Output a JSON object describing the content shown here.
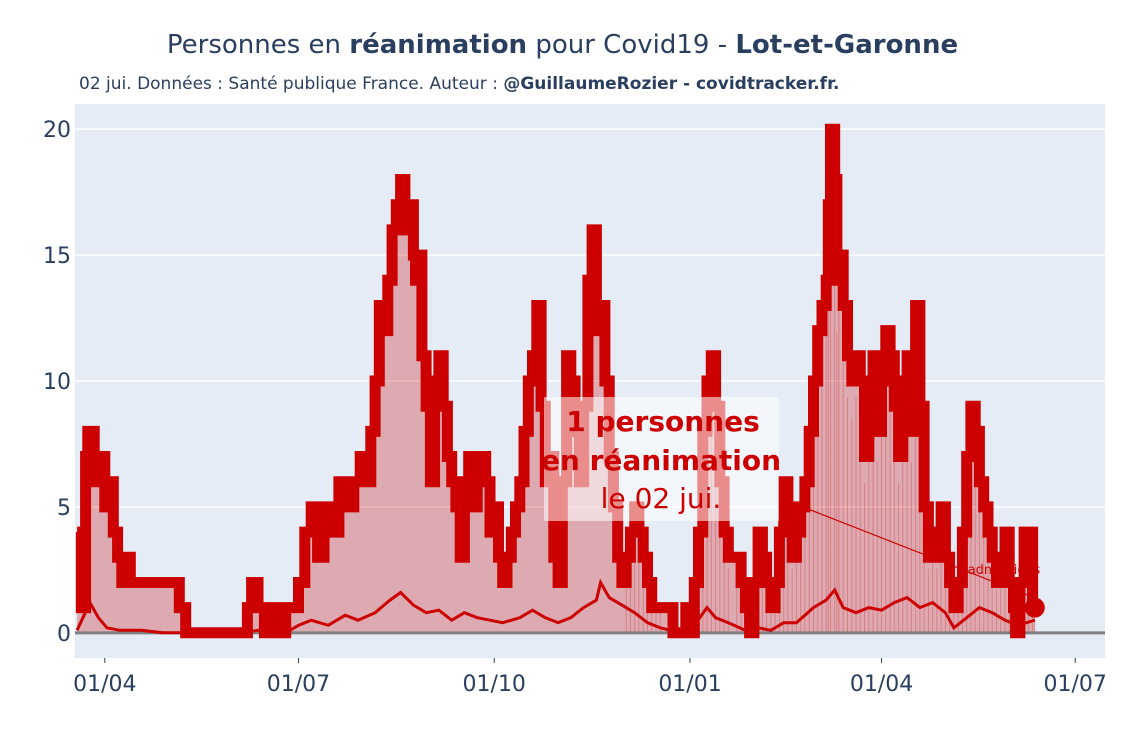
{
  "title": {
    "prefix": "Personnes en ",
    "bold1": "réanimation",
    "middle": " pour Covid19 - ",
    "bold2": "Lot-et-Garonne"
  },
  "subtitle": {
    "text": "02 jui. Données : Santé publique France. Auteur : ",
    "bold": "@GuillaumeRozier - covidtracker.fr."
  },
  "colors": {
    "main": "#cc0000",
    "fill": "rgba(204,0,0,0.28)",
    "plot_bg": "#e5ecf6",
    "grid": "#ffffff",
    "zero_line": "#808080"
  },
  "annotation": {
    "line1": "1 personnes",
    "line2": "en réanimation",
    "line3": "le 02 jui."
  },
  "small_annotation": {
    "line1": "0",
    "line2": "admissions"
  },
  "chart_data": {
    "type": "area",
    "x_start": "2020-03-19",
    "x_end": "2021-06-02",
    "xlim": [
      "2020-03-18",
      "2021-07-15"
    ],
    "ylim": [
      -1,
      21
    ],
    "grid": true,
    "x_ticks": [
      "01/04",
      "01/07",
      "01/10",
      "01/01",
      "01/04",
      "01/07",
      "01/10",
      "01/01",
      "01/04",
      "01/07"
    ],
    "y_ticks": [
      "0",
      "5",
      "10",
      "15",
      "20"
    ],
    "series": [
      {
        "name": "réanimation",
        "points": [
          [
            0,
            4
          ],
          [
            2,
            1
          ],
          [
            4,
            7
          ],
          [
            5,
            8
          ],
          [
            8,
            6
          ],
          [
            10,
            7
          ],
          [
            13,
            5
          ],
          [
            15,
            6
          ],
          [
            17,
            4
          ],
          [
            19,
            3
          ],
          [
            21,
            2
          ],
          [
            23,
            3
          ],
          [
            25,
            2
          ],
          [
            40,
            2
          ],
          [
            45,
            2
          ],
          [
            48,
            1
          ],
          [
            51,
            0
          ],
          [
            60,
            0
          ],
          [
            70,
            0
          ],
          [
            77,
            0
          ],
          [
            80,
            1
          ],
          [
            82,
            2
          ],
          [
            85,
            1
          ],
          [
            88,
            0
          ],
          [
            91,
            1
          ],
          [
            95,
            0
          ],
          [
            98,
            1
          ],
          [
            102,
            1
          ],
          [
            104,
            2
          ],
          [
            107,
            4
          ],
          [
            110,
            5
          ],
          [
            113,
            3
          ],
          [
            116,
            5
          ],
          [
            120,
            4
          ],
          [
            123,
            6
          ],
          [
            127,
            5
          ],
          [
            130,
            6
          ],
          [
            133,
            7
          ],
          [
            136,
            6
          ],
          [
            138,
            8
          ],
          [
            140,
            10
          ],
          [
            142,
            13
          ],
          [
            144,
            12
          ],
          [
            146,
            14
          ],
          [
            148,
            16
          ],
          [
            150,
            17
          ],
          [
            152,
            18
          ],
          [
            154,
            16
          ],
          [
            156,
            17
          ],
          [
            158,
            15
          ],
          [
            159,
            14
          ],
          [
            160,
            15
          ],
          [
            162,
            11
          ],
          [
            164,
            9
          ],
          [
            166,
            6
          ],
          [
            168,
            10
          ],
          [
            170,
            11
          ],
          [
            172,
            9
          ],
          [
            174,
            7
          ],
          [
            176,
            6
          ],
          [
            178,
            5
          ],
          [
            180,
            3
          ],
          [
            182,
            6
          ],
          [
            184,
            7
          ],
          [
            186,
            5
          ],
          [
            188,
            6
          ],
          [
            190,
            7
          ],
          [
            192,
            6
          ],
          [
            194,
            4
          ],
          [
            196,
            5
          ],
          [
            198,
            3
          ],
          [
            200,
            2
          ],
          [
            202,
            3
          ],
          [
            204,
            4
          ],
          [
            206,
            5
          ],
          [
            208,
            6
          ],
          [
            210,
            8
          ],
          [
            212,
            10
          ],
          [
            214,
            11
          ],
          [
            216,
            13
          ],
          [
            218,
            9
          ],
          [
            220,
            6
          ],
          [
            222,
            7
          ],
          [
            224,
            3
          ],
          [
            226,
            2
          ],
          [
            228,
            6
          ],
          [
            230,
            11
          ],
          [
            232,
            10
          ],
          [
            234,
            8
          ],
          [
            236,
            6
          ],
          [
            238,
            9
          ],
          [
            240,
            14
          ],
          [
            242,
            16
          ],
          [
            244,
            12
          ],
          [
            246,
            13
          ],
          [
            248,
            10
          ],
          [
            250,
            7
          ],
          [
            252,
            5
          ],
          [
            254,
            3
          ],
          [
            256,
            2
          ],
          [
            258,
            3
          ],
          [
            260,
            4
          ],
          [
            262,
            5
          ],
          [
            264,
            4
          ],
          [
            266,
            3
          ],
          [
            268,
            2
          ],
          [
            270,
            1
          ],
          [
            272,
            1
          ],
          [
            274,
            1
          ],
          [
            278,
            1
          ],
          [
            280,
            0
          ],
          [
            284,
            0
          ],
          [
            286,
            1
          ],
          [
            288,
            0
          ],
          [
            290,
            2
          ],
          [
            292,
            4
          ],
          [
            294,
            8
          ],
          [
            296,
            10
          ],
          [
            298,
            11
          ],
          [
            300,
            9
          ],
          [
            302,
            6
          ],
          [
            304,
            4
          ],
          [
            306,
            3
          ],
          [
            310,
            3
          ],
          [
            312,
            2
          ],
          [
            314,
            1
          ],
          [
            316,
            0
          ],
          [
            318,
            2
          ],
          [
            320,
            4
          ],
          [
            322,
            3
          ],
          [
            324,
            2
          ],
          [
            326,
            1
          ],
          [
            328,
            2
          ],
          [
            330,
            4
          ],
          [
            332,
            6
          ],
          [
            334,
            5
          ],
          [
            336,
            3
          ],
          [
            338,
            4
          ],
          [
            340,
            5
          ],
          [
            342,
            6
          ],
          [
            344,
            8
          ],
          [
            346,
            10
          ],
          [
            348,
            12
          ],
          [
            350,
            13
          ],
          [
            352,
            14
          ],
          [
            353,
            17
          ],
          [
            354,
            20
          ],
          [
            356,
            18
          ],
          [
            357,
            14
          ],
          [
            358,
            15
          ],
          [
            360,
            13
          ],
          [
            362,
            11
          ],
          [
            364,
            10
          ],
          [
            366,
            11
          ],
          [
            368,
            10
          ],
          [
            370,
            7
          ],
          [
            372,
            9
          ],
          [
            374,
            11
          ],
          [
            376,
            8
          ],
          [
            378,
            10
          ],
          [
            380,
            12
          ],
          [
            382,
            11
          ],
          [
            384,
            9
          ],
          [
            386,
            7
          ],
          [
            388,
            10
          ],
          [
            390,
            11
          ],
          [
            392,
            8
          ],
          [
            394,
            13
          ],
          [
            396,
            9
          ],
          [
            398,
            5
          ],
          [
            400,
            3
          ],
          [
            402,
            4
          ],
          [
            404,
            3
          ],
          [
            406,
            5
          ],
          [
            408,
            3
          ],
          [
            410,
            2
          ],
          [
            412,
            1
          ],
          [
            414,
            2
          ],
          [
            416,
            4
          ],
          [
            418,
            7
          ],
          [
            420,
            9
          ],
          [
            422,
            8
          ],
          [
            424,
            6
          ],
          [
            426,
            5
          ],
          [
            428,
            4
          ],
          [
            430,
            3
          ],
          [
            432,
            2
          ],
          [
            434,
            3
          ],
          [
            436,
            4
          ],
          [
            438,
            2
          ],
          [
            440,
            1
          ],
          [
            441,
            0
          ],
          [
            443,
            2
          ],
          [
            445,
            4
          ],
          [
            447,
            4
          ],
          [
            449,
            1
          ],
          [
            450,
            1
          ]
        ]
      },
      {
        "name": "admissions",
        "points": [
          [
            0,
            0.1
          ],
          [
            6,
            1.2
          ],
          [
            10,
            0.6
          ],
          [
            14,
            0.2
          ],
          [
            20,
            0.1
          ],
          [
            30,
            0.1
          ],
          [
            40,
            0
          ],
          [
            77,
            0
          ],
          [
            85,
            0.1
          ],
          [
            98,
            0
          ],
          [
            104,
            0.3
          ],
          [
            110,
            0.5
          ],
          [
            118,
            0.3
          ],
          [
            126,
            0.7
          ],
          [
            132,
            0.5
          ],
          [
            140,
            0.8
          ],
          [
            147,
            1.3
          ],
          [
            152,
            1.6
          ],
          [
            158,
            1.1
          ],
          [
            164,
            0.8
          ],
          [
            170,
            0.9
          ],
          [
            176,
            0.5
          ],
          [
            182,
            0.8
          ],
          [
            188,
            0.6
          ],
          [
            194,
            0.5
          ],
          [
            200,
            0.4
          ],
          [
            208,
            0.6
          ],
          [
            214,
            0.9
          ],
          [
            220,
            0.6
          ],
          [
            226,
            0.4
          ],
          [
            232,
            0.6
          ],
          [
            238,
            1
          ],
          [
            244,
            1.3
          ],
          [
            246,
            2
          ],
          [
            250,
            1.4
          ],
          [
            256,
            1.1
          ],
          [
            262,
            0.8
          ],
          [
            268,
            0.4
          ],
          [
            274,
            0.2
          ],
          [
            284,
            0
          ],
          [
            290,
            0.3
          ],
          [
            296,
            1.0
          ],
          [
            300,
            0.6
          ],
          [
            306,
            0.4
          ],
          [
            314,
            0.1
          ],
          [
            320,
            0.2
          ],
          [
            326,
            0.1
          ],
          [
            332,
            0.4
          ],
          [
            338,
            0.4
          ],
          [
            346,
            1.0
          ],
          [
            352,
            1.3
          ],
          [
            356,
            1.7
          ],
          [
            360,
            1.0
          ],
          [
            366,
            0.8
          ],
          [
            372,
            1.0
          ],
          [
            378,
            0.9
          ],
          [
            384,
            1.2
          ],
          [
            390,
            1.4
          ],
          [
            396,
            1.0
          ],
          [
            402,
            1.2
          ],
          [
            408,
            0.8
          ],
          [
            412,
            0.2
          ],
          [
            418,
            0.6
          ],
          [
            424,
            1.0
          ],
          [
            430,
            0.8
          ],
          [
            436,
            0.5
          ],
          [
            442,
            0.3
          ],
          [
            450,
            0.5
          ]
        ]
      }
    ]
  }
}
